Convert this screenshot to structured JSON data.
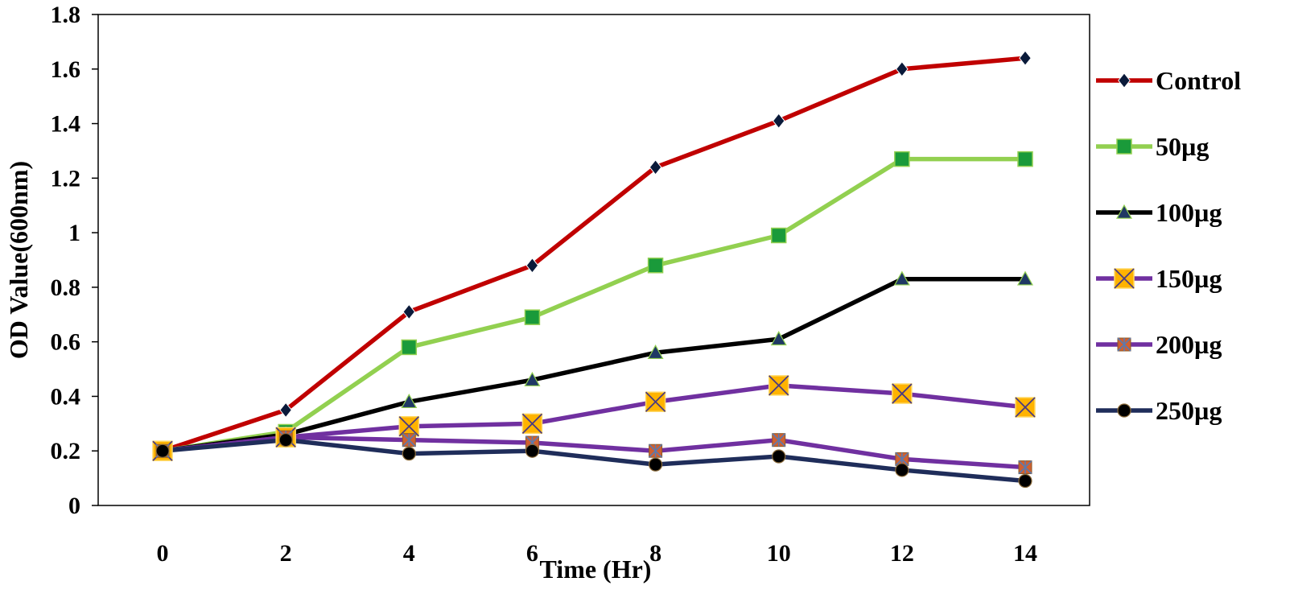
{
  "chart_data": {
    "type": "line",
    "title": "",
    "xlabel": "Time (Hr)",
    "ylabel": "OD Value(600nm)",
    "x": [
      0,
      2,
      4,
      6,
      8,
      10,
      12,
      14
    ],
    "xticks": [
      "0",
      "2",
      "4",
      "6",
      "8",
      "10",
      "12",
      "14"
    ],
    "yticks": [
      "0",
      "0.2",
      "0.4",
      "0.6",
      "0.8",
      "1",
      "1.2",
      "1.4",
      "1.6",
      "1.8"
    ],
    "ylim": [
      0,
      1.8
    ],
    "grid": false,
    "legend_position": "right",
    "series": [
      {
        "name": "Control",
        "color": "#c00000",
        "marker": "diamond",
        "marker_fill": "#0a1a3a",
        "values": [
          0.2,
          0.35,
          0.71,
          0.88,
          1.24,
          1.41,
          1.6,
          1.64
        ]
      },
      {
        "name": "50µg",
        "color": "#92d050",
        "marker": "square",
        "marker_fill": "#1a9a3a",
        "values": [
          0.2,
          0.27,
          0.58,
          0.69,
          0.88,
          0.99,
          1.27,
          1.27
        ]
      },
      {
        "name": "100µg",
        "color": "#000000",
        "marker": "triangle",
        "marker_fill": "#1f3864",
        "values": [
          0.2,
          0.26,
          0.38,
          0.46,
          0.56,
          0.61,
          0.83,
          0.83
        ]
      },
      {
        "name": "150µg",
        "color": "#7030a0",
        "marker": "x-square",
        "marker_fill": "#ffb300",
        "values": [
          0.2,
          0.25,
          0.29,
          0.3,
          0.38,
          0.44,
          0.41,
          0.36
        ]
      },
      {
        "name": "200µg",
        "color": "#7030a0",
        "marker": "star-square",
        "marker_fill": "#d06030",
        "values": [
          0.2,
          0.25,
          0.24,
          0.23,
          0.2,
          0.24,
          0.17,
          0.14
        ]
      },
      {
        "name": "250µg",
        "color": "#1f2d5a",
        "marker": "circle",
        "marker_fill": "#000000",
        "values": [
          0.2,
          0.24,
          0.19,
          0.2,
          0.15,
          0.18,
          0.13,
          0.09
        ]
      }
    ]
  }
}
